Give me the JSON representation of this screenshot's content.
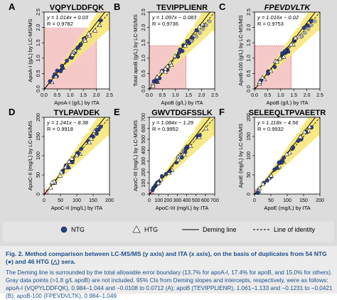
{
  "figure": {
    "panels": [
      {
        "letter": "A",
        "peptide": "VQPYLDDFQK",
        "italic": false,
        "eq": "y = 1.014x + 0.03",
        "r": "R = 0.9782",
        "ylabel": "ApoA-I (g/L) by LC-MS/MS",
        "xlabel": "ApoA-I (g/L) by ITA",
        "ticks": [
          "0.0",
          "0.5",
          "1.0",
          "1.5",
          "2.0",
          "2.5"
        ],
        "ref_value": 2.0
      },
      {
        "letter": "B",
        "peptide": "TEVIPPLIENR",
        "italic": false,
        "eq": "y = 1.097x − 0.083",
        "r": "R = 0.9736",
        "ylabel": "Total apoB (g/L) by LC-MS/MS",
        "xlabel": "ApoB (g/L) by ITA",
        "ticks": [
          "0.0",
          "0.5",
          "1.0",
          "1.5",
          "2.0",
          "2.5"
        ],
        "ref_value": 1.4
      },
      {
        "letter": "C",
        "peptide": "FPEVDVLTK",
        "italic": true,
        "eq": "y = 1.016x − 0.02",
        "r": "R = 0.9753",
        "ylabel": "ApoB-100 (g/L) by LC-MS/MS",
        "xlabel": "ApoB (g/L) by ITA",
        "ticks": [
          "0.0",
          "0.5",
          "1.0",
          "1.5",
          "2.0",
          "2.5"
        ],
        "ref_value": 1.4
      },
      {
        "letter": "D",
        "peptide": "TYLPAVDEK",
        "italic": false,
        "eq": "y = 1.241x − 8.38",
        "r": "R = 0.9918",
        "ylabel": "ApoC-II (mg/L) by LC-MS/MS",
        "xlabel": "ApoC-II (mg/L) by ITA",
        "ticks": [
          "0",
          "50",
          "100",
          "150",
          "200"
        ],
        "ref_value": 0
      },
      {
        "letter": "E",
        "peptide": "GWVTDGFSSLK",
        "italic": false,
        "eq": "y = 1.084x − 1.29",
        "r": "R = 0.9952",
        "ylabel": "ApoC-III (mg/L) by LC-MS/MS",
        "xlabel": "ApoC-III (mg/L) by ITA",
        "ticks": [
          "0",
          "100",
          "200",
          "300",
          "400",
          "500",
          "600",
          "700"
        ],
        "ref_value": 0
      },
      {
        "letter": "F",
        "peptide": "SELEEQLTPVAEETR",
        "italic": false,
        "eq": "y = 1.118x − 4.56",
        "r": "R = 0.9932",
        "ylabel": "ApoE (mg/L) by LC-MS/MS",
        "xlabel": "ApoE (mg/L) by ITA",
        "ticks": [
          "0",
          "50",
          "100",
          "150",
          "200"
        ],
        "ref_value": 0
      }
    ],
    "legend": {
      "ntg": "NTG",
      "htg": "HTG",
      "deming": "Deming line",
      "identity": "Line of identity"
    },
    "colors": {
      "figure_bg": "#dcdcdc",
      "band": "#f6e77a",
      "ntg_point": "#2a3e8c",
      "htg_point": "#ffffff",
      "ref_box_fill": "#f6c9c9",
      "ref_box_line": "#e06060",
      "caption_text": "#1c4f8a"
    }
  },
  "caption": {
    "title": "Fig. 2.  Method comparison between LC-MS/MS (y axis) and ITA (x axis), on the basis of duplicates from 54 NTG (●) and 46 HTG (△) sera.",
    "body": "The Deming line is surrounded by the total allowable error boundary (13.7% for apoA-I, 17.4% for apoB, and 15.0% for others). Gray data points (>1.8 g/L apoB) are not included. 95% CIs from Deming slopes and intercepts, respectively, were as follows: apoA-I (VQPYLDDFQK), 0.984–1.044 and −0.0108 to 0.0712 (A); apoB (TEVIPPLIENR), 1.061–1.133 and −0.1231 to −0.0421 (B); apoB-100 (FPEVDVLTK), 0.984–1.049"
  }
}
